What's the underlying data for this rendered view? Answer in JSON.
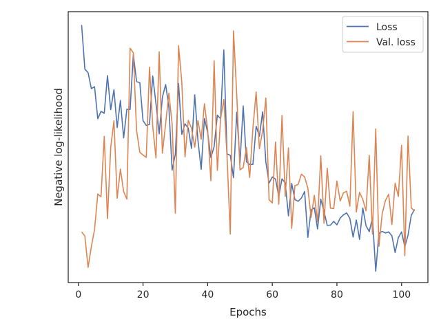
{
  "chart_data": {
    "type": "line",
    "title": "",
    "xlabel": "Epochs",
    "ylabel": "Negative log-likelihood",
    "xlim": [
      -3.15,
      108.15
    ],
    "ylim": [
      0.0,
      1.0
    ],
    "xticks": [
      0,
      20,
      40,
      60,
      80,
      100
    ],
    "yticks": [],
    "grid": false,
    "legend": "top-right",
    "series": [
      {
        "name": "Loss",
        "color": "#4c72b0",
        "x": [
          1,
          2,
          3,
          4,
          5,
          6,
          7,
          8,
          9,
          10,
          11,
          12,
          13,
          14,
          15,
          16,
          17,
          18,
          19,
          20,
          21,
          22,
          23,
          24,
          25,
          26,
          27,
          28,
          29,
          30,
          31,
          32,
          33,
          34,
          35,
          36,
          37,
          38,
          39,
          40,
          41,
          42,
          43,
          44,
          45,
          46,
          47,
          48,
          49,
          50,
          51,
          52,
          53,
          54,
          55,
          56,
          57,
          58,
          59,
          60,
          61,
          62,
          63,
          64,
          65,
          66,
          67,
          68,
          69,
          70,
          71,
          72,
          73,
          74,
          75,
          76,
          77,
          78,
          79,
          80,
          81,
          82,
          83,
          84,
          85,
          86,
          87,
          88,
          89,
          90,
          91,
          92,
          93,
          94,
          95,
          96,
          97,
          98,
          99,
          100,
          101,
          102,
          103,
          104
        ],
        "y": [
          0.951,
          0.788,
          0.775,
          0.716,
          0.723,
          0.605,
          0.632,
          0.625,
          0.764,
          0.638,
          0.712,
          0.572,
          0.672,
          0.534,
          0.64,
          0.639,
          0.842,
          0.742,
          0.738,
          0.598,
          0.58,
          0.584,
          0.763,
          0.661,
          0.549,
          0.685,
          0.731,
          0.648,
          0.415,
          0.474,
          0.735,
          0.547,
          0.586,
          0.57,
          0.495,
          0.693,
          0.524,
          0.418,
          0.606,
          0.554,
          0.461,
          0.502,
          0.618,
          0.605,
          0.859,
          0.475,
          0.47,
          0.387,
          0.629,
          0.442,
          0.652,
          0.446,
          0.436,
          0.436,
          0.577,
          0.54,
          0.63,
          0.445,
          0.367,
          0.39,
          0.382,
          0.318,
          0.383,
          0.368,
          0.246,
          0.366,
          0.306,
          0.3,
          0.312,
          0.336,
          0.167,
          0.268,
          0.276,
          0.198,
          0.308,
          0.263,
          0.211,
          0.212,
          0.226,
          0.213,
          0.238,
          0.25,
          0.257,
          0.237,
          0.168,
          0.231,
          0.159,
          0.275,
          0.21,
          0.188,
          0.239,
          0.042,
          0.182,
          0.189,
          0.183,
          0.187,
          0.173,
          0.111,
          0.166,
          0.187,
          0.132,
          0.175,
          0.248,
          0.27
        ]
      },
      {
        "name": "Val. loss",
        "color": "#dd8452",
        "x": [
          1,
          2,
          3,
          4,
          5,
          6,
          7,
          8,
          9,
          10,
          11,
          12,
          13,
          14,
          15,
          16,
          17,
          18,
          19,
          20,
          21,
          22,
          23,
          24,
          25,
          26,
          27,
          28,
          29,
          30,
          31,
          32,
          33,
          34,
          35,
          36,
          37,
          38,
          39,
          40,
          41,
          42,
          43,
          44,
          45,
          46,
          47,
          48,
          49,
          50,
          51,
          52,
          53,
          54,
          55,
          56,
          57,
          58,
          59,
          60,
          61,
          62,
          63,
          64,
          65,
          66,
          67,
          68,
          69,
          70,
          71,
          72,
          73,
          74,
          75,
          76,
          77,
          78,
          79,
          80,
          81,
          82,
          83,
          84,
          85,
          86,
          87,
          88,
          89,
          90,
          91,
          92,
          93,
          94,
          95,
          96,
          97,
          98,
          99,
          100,
          101,
          102,
          103,
          104
        ],
        "y": [
          0.187,
          0.172,
          0.056,
          0.132,
          0.196,
          0.327,
          0.317,
          0.54,
          0.236,
          0.498,
          0.597,
          0.311,
          0.419,
          0.336,
          0.308,
          0.865,
          0.848,
          0.562,
          0.481,
          0.471,
          0.462,
          0.795,
          0.578,
          0.46,
          0.852,
          0.478,
          0.587,
          0.699,
          0.586,
          0.256,
          0.875,
          0.739,
          0.464,
          0.599,
          0.57,
          0.5,
          0.598,
          0.529,
          0.66,
          0.564,
          0.376,
          0.819,
          0.414,
          0.604,
          0.676,
          0.465,
          0.179,
          0.929,
          0.693,
          0.416,
          0.425,
          0.499,
          0.388,
          0.57,
          0.704,
          0.494,
          0.559,
          0.681,
          0.306,
          0.294,
          0.519,
          0.289,
          0.617,
          0.318,
          0.497,
          0.2,
          0.358,
          0.362,
          0.4,
          0.39,
          0.349,
          0.24,
          0.322,
          0.224,
          0.468,
          0.219,
          0.422,
          0.275,
          0.273,
          0.375,
          0.301,
          0.331,
          0.337,
          0.282,
          0.631,
          0.261,
          0.333,
          0.307,
          0.265,
          0.47,
          0.179,
          0.567,
          0.134,
          0.254,
          0.303,
          0.326,
          0.214,
          0.367,
          0.318,
          0.507,
          0.099,
          0.541,
          0.276,
          0.264
        ]
      }
    ]
  }
}
